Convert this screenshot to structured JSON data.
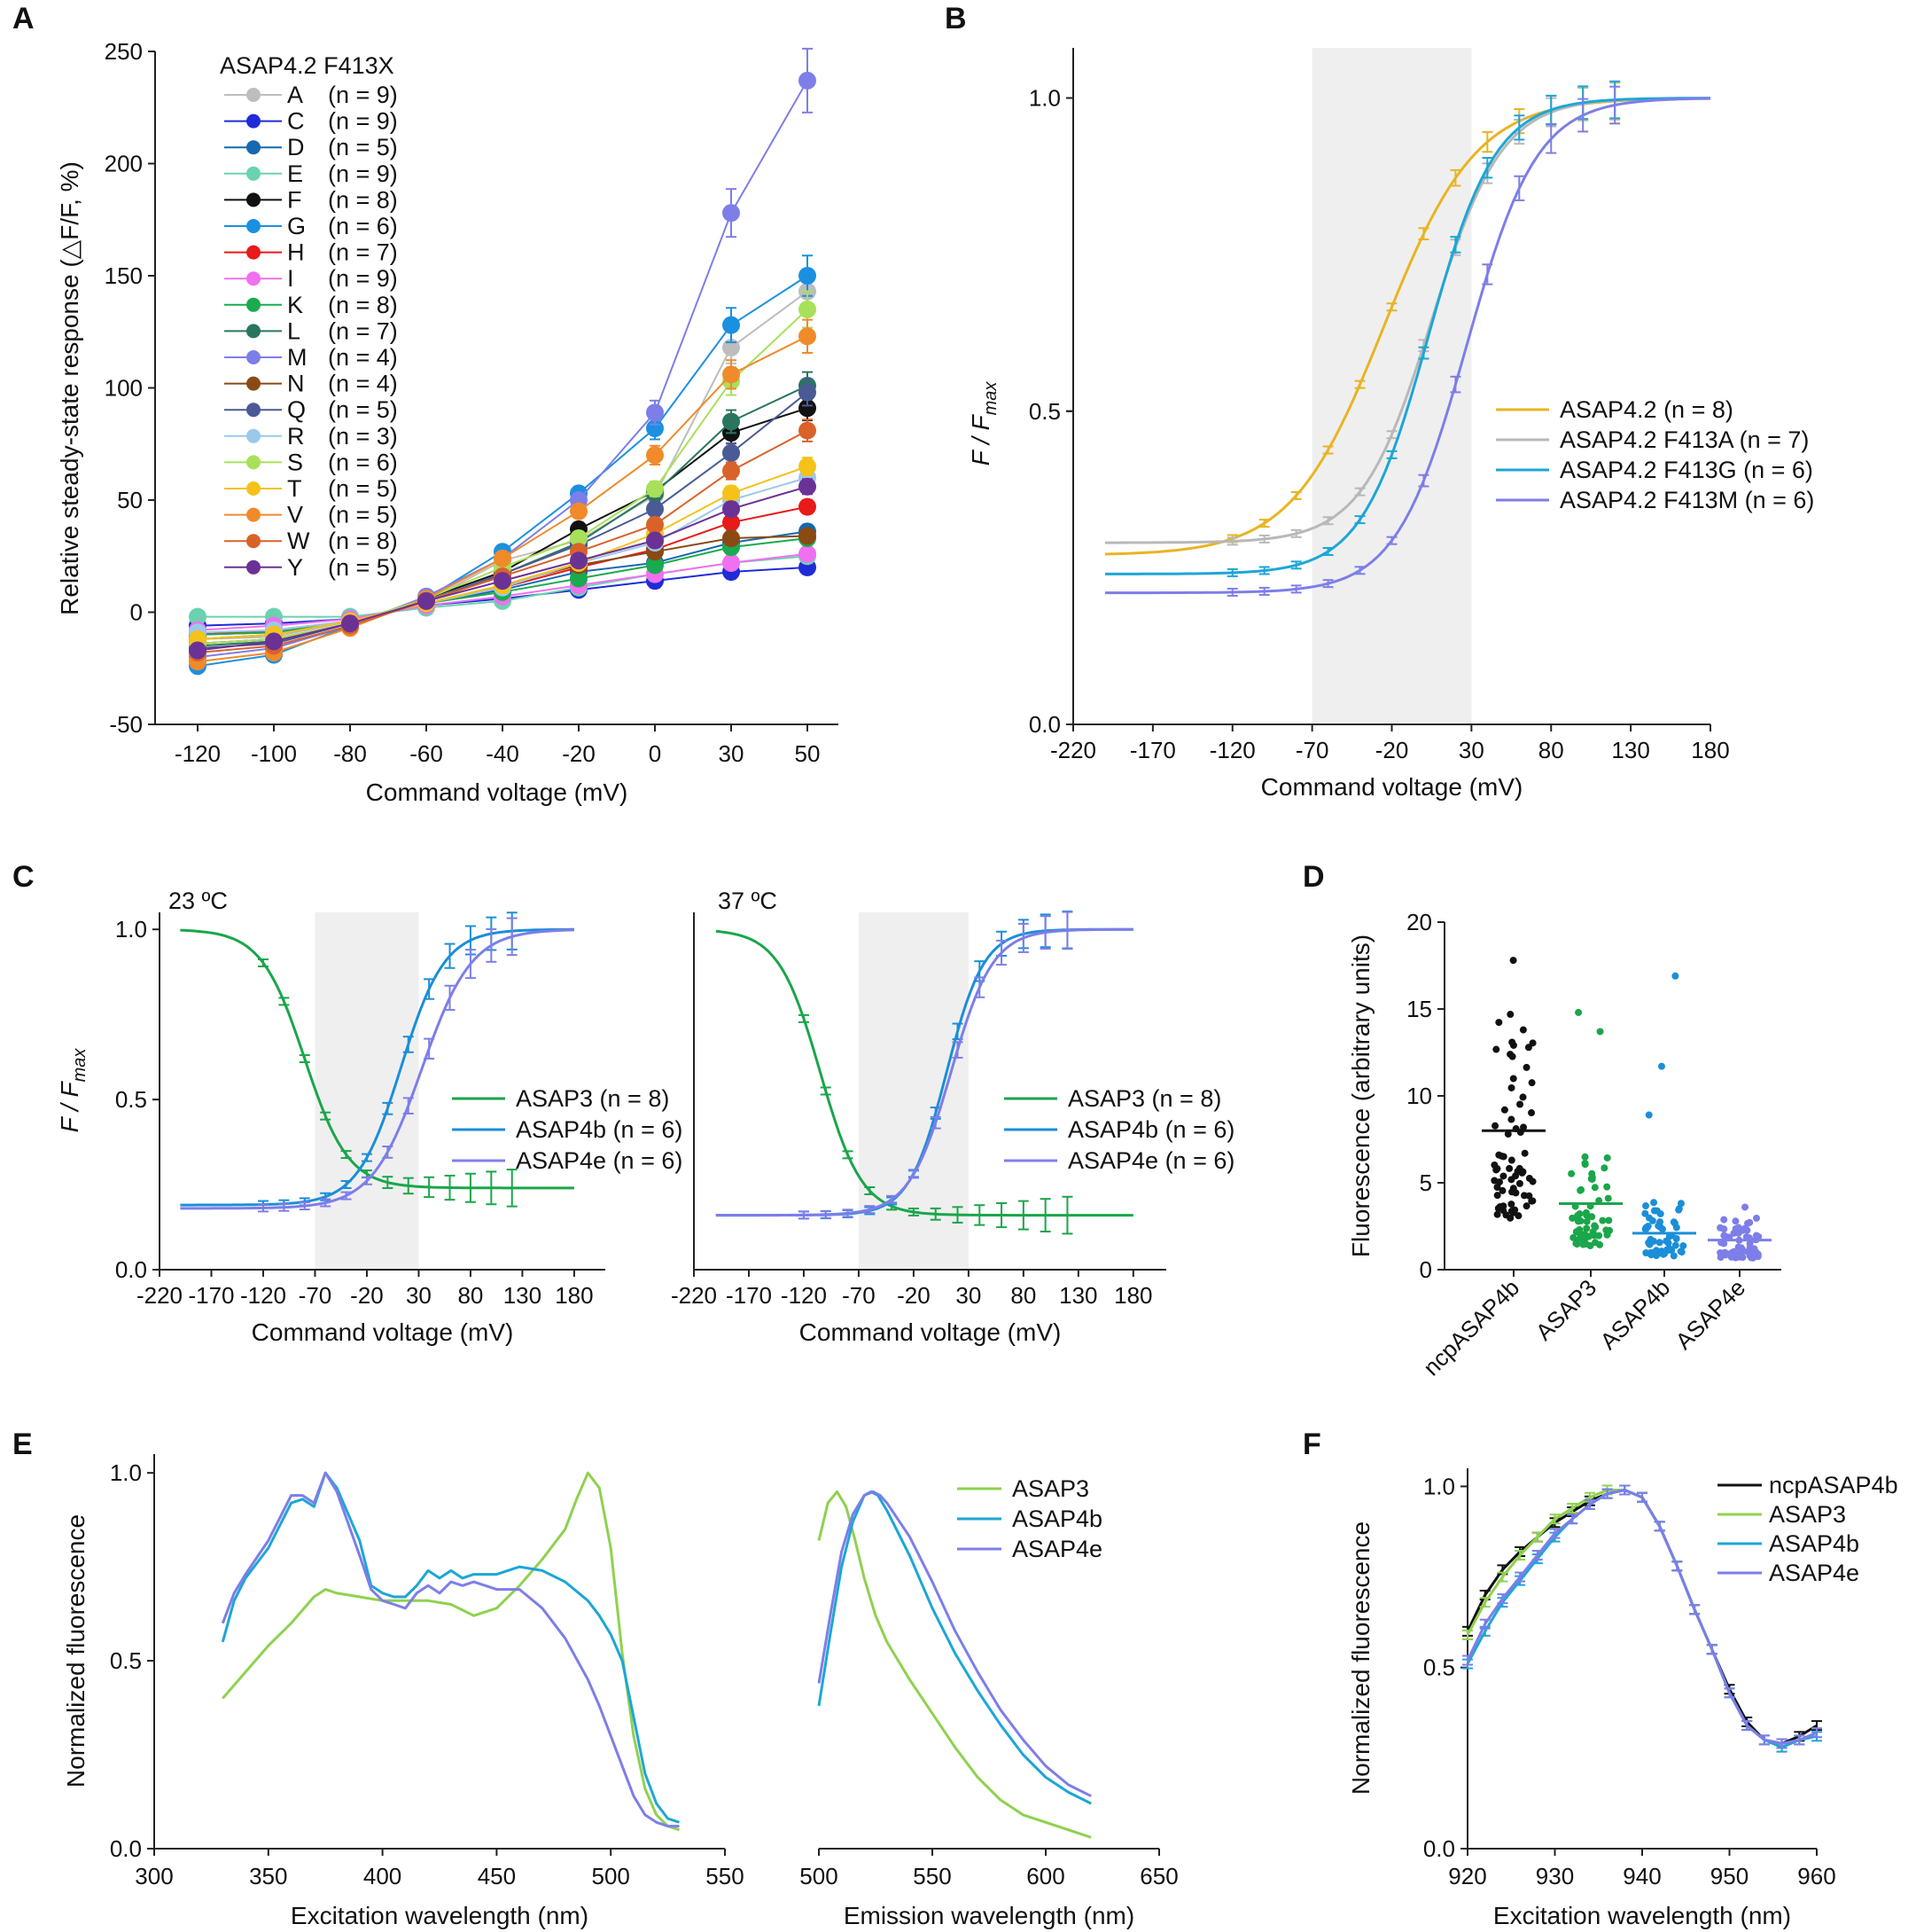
{
  "chart_data": [
    {
      "id": "A",
      "type": "line",
      "panel_label": "A",
      "legend_title": "ASAP4.2 F413X",
      "xlabel": "Command voltage (mV)",
      "ylabel": "Relative steady-state response (△F/F, %)",
      "categories": [
        "-120",
        "-100",
        "-80",
        "-60",
        "-40",
        "-20",
        "0",
        "30",
        "50"
      ],
      "yticks": [
        "250",
        "200",
        "150",
        "100",
        "50",
        "0",
        "-50"
      ],
      "ylim": [
        -50,
        250
      ],
      "series": [
        {
          "name": "A",
          "n": "(n = 9)",
          "color": "#bdbdbd",
          "values": [
            -12,
            -11,
            -4,
            5,
            23,
            32,
            52,
            118,
            143
          ]
        },
        {
          "name": "C",
          "n": "(n = 9)",
          "color": "#1f2bd6",
          "values": [
            -6,
            -5,
            -3,
            3,
            6,
            10,
            14,
            18,
            20
          ]
        },
        {
          "name": "D",
          "n": "(n = 5)",
          "color": "#1668b0",
          "values": [
            -10,
            -9,
            -4,
            4,
            10,
            18,
            22,
            31,
            36
          ]
        },
        {
          "name": "E",
          "n": "(n = 9)",
          "color": "#6ad2b0",
          "values": [
            -2,
            -2,
            -2,
            2,
            5,
            11,
            17,
            22,
            25
          ]
        },
        {
          "name": "F",
          "n": "(n = 8)",
          "color": "#111111",
          "values": [
            -14,
            -12,
            -5,
            6,
            18,
            37,
            54,
            80,
            91
          ]
        },
        {
          "name": "G",
          "n": "(n = 6)",
          "color": "#1b90e0",
          "values": [
            -24,
            -19,
            -6,
            6,
            27,
            53,
            82,
            128,
            150
          ]
        },
        {
          "name": "H",
          "n": "(n = 7)",
          "color": "#e81a1a",
          "values": [
            -10,
            -8,
            -4,
            4,
            11,
            20,
            28,
            40,
            47
          ]
        },
        {
          "name": "I",
          "n": "(n = 9)",
          "color": "#f070f0",
          "values": [
            -8,
            -6,
            -3,
            3,
            7,
            12,
            17,
            22,
            26
          ]
        },
        {
          "name": "K",
          "n": "(n = 8)",
          "color": "#1aaa50",
          "values": [
            -10,
            -9,
            -4,
            4,
            9,
            15,
            21,
            29,
            33
          ]
        },
        {
          "name": "L",
          "n": "(n = 7)",
          "color": "#2a7560",
          "values": [
            -15,
            -13,
            -5,
            5,
            17,
            31,
            53,
            85,
            101
          ]
        },
        {
          "name": "M",
          "n": "(n = 4)",
          "color": "#7d7ee8",
          "values": [
            -20,
            -16,
            -6,
            7,
            24,
            50,
            89,
            178,
            237
          ]
        },
        {
          "name": "N",
          "n": "(n = 4)",
          "color": "#8b4a14",
          "values": [
            -12,
            -10,
            -4,
            4,
            12,
            21,
            27,
            33,
            34
          ]
        },
        {
          "name": "Q",
          "n": "(n = 5)",
          "color": "#4a5a94",
          "values": [
            -16,
            -14,
            -5,
            5,
            17,
            30,
            46,
            71,
            98
          ]
        },
        {
          "name": "R",
          "n": "(n = 3)",
          "color": "#9cc8ea",
          "values": [
            -9,
            -8,
            -4,
            4,
            11,
            22,
            31,
            50,
            60
          ]
        },
        {
          "name": "S",
          "n": "(n = 6)",
          "color": "#a8e05a",
          "values": [
            -14,
            -12,
            -5,
            6,
            20,
            33,
            55,
            103,
            135
          ]
        },
        {
          "name": "T",
          "n": "(n = 5)",
          "color": "#f5c21a",
          "values": [
            -12,
            -10,
            -4,
            4,
            12,
            22,
            35,
            53,
            65
          ]
        },
        {
          "name": "V",
          "n": "(n = 5)",
          "color": "#f08a2a",
          "values": [
            -22,
            -18,
            -7,
            6,
            24,
            45,
            70,
            106,
            123
          ]
        },
        {
          "name": "W",
          "n": "(n = 8)",
          "color": "#d9622a",
          "values": [
            -18,
            -15,
            -6,
            5,
            16,
            27,
            39,
            63,
            81
          ]
        },
        {
          "name": "Y",
          "n": "(n = 5)",
          "color": "#6b3296",
          "values": [
            -17,
            -13,
            -5,
            5,
            14,
            23,
            32,
            46,
            56
          ]
        }
      ]
    },
    {
      "id": "B",
      "type": "line",
      "panel_label": "B",
      "xlabel": "Command voltage (mV)",
      "ylabel": "F / Fmax",
      "ylabel_main": "F / F",
      "ylabel_sub": "max",
      "xticks": [
        "-220",
        "-170",
        "-120",
        "-70",
        "-20",
        "30",
        "80",
        "130",
        "180"
      ],
      "yticks": [
        "1.0",
        "0.5",
        "0.0"
      ],
      "xlim": [
        -220,
        180
      ],
      "ylim": [
        0,
        1.08
      ],
      "shade": [
        -70,
        30
      ],
      "series": [
        {
          "name": "ASAP4.2 (n = 8)",
          "color": "#e8b422",
          "min": 0.27,
          "v0": -25,
          "k": 29
        },
        {
          "name": "ASAP4.2 F413A (n = 7)",
          "color": "#b8b8b8",
          "min": 0.29,
          "v0": 5,
          "k": 22
        },
        {
          "name": "ASAP4.2 F413G (n = 6)",
          "color": "#1da6d6",
          "min": 0.24,
          "v0": 3,
          "k": 21
        },
        {
          "name": "ASAP4.2 F413M (n = 6)",
          "color": "#7d7ee8",
          "min": 0.21,
          "v0": 27,
          "k": 22
        }
      ]
    },
    {
      "id": "C1",
      "type": "line",
      "panel_label": "C",
      "title": "23 ºC",
      "xlabel": "Command voltage (mV)",
      "ylabel": "F / Fmax",
      "ylabel_main": "F / F",
      "ylabel_sub": "max",
      "xticks": [
        "-220",
        "-170",
        "-120",
        "-70",
        "-20",
        "30",
        "80",
        "130",
        "180"
      ],
      "yticks": [
        "1.0",
        "0.5",
        "0.0"
      ],
      "xlim": [
        -220,
        210
      ],
      "ylim": [
        0,
        1.05
      ],
      "shade": [
        -70,
        30
      ],
      "series": [
        {
          "name": "ASAP3 (n = 8)",
          "color": "#1aa64a",
          "decreasing": true,
          "min": 0.24,
          "v0": -80,
          "k": 21
        },
        {
          "name": "ASAP4b (n = 6)",
          "color": "#1b8ed8",
          "min": 0.19,
          "v0": 13,
          "k": 21
        },
        {
          "name": "ASAP4e (n = 6)",
          "color": "#7d7ee8",
          "min": 0.18,
          "v0": 33,
          "k": 24
        }
      ]
    },
    {
      "id": "C2",
      "type": "line",
      "title": "37 ºC",
      "xticks": [
        "-220",
        "-170",
        "-120",
        "-70",
        "-20",
        "30",
        "80",
        "130",
        "180"
      ],
      "xlabel": "Command voltage (mV)",
      "xlim": [
        -220,
        210
      ],
      "ylim": [
        0,
        1.05
      ],
      "shade": [
        -70,
        30
      ],
      "series": [
        {
          "name": "ASAP3 (n = 8)",
          "color": "#1aa64a",
          "decreasing": true,
          "min": 0.16,
          "v0": -105,
          "k": 19
        },
        {
          "name": "ASAP4b (n = 6)",
          "color": "#1b8ed8",
          "min": 0.16,
          "v0": 10,
          "k": 17
        },
        {
          "name": "ASAP4e (n = 6)",
          "color": "#7d7ee8",
          "min": 0.16,
          "v0": 14,
          "k": 19
        }
      ]
    },
    {
      "id": "D",
      "type": "scatter",
      "panel_label": "D",
      "ylabel": "Fluorescence (arbitrary units)",
      "categories": [
        "ncpASAP4b",
        "ASAP3",
        "ASAP4b",
        "ASAP4e"
      ],
      "colors": [
        "#111111",
        "#1aa64a",
        "#1b8ed8",
        "#7d7ee8"
      ],
      "means": [
        8.0,
        3.8,
        2.1,
        1.7
      ],
      "maxes": [
        17.8,
        14.8,
        16.9,
        3.6
      ],
      "yticks": [
        "20",
        "15",
        "10",
        "5",
        "0"
      ],
      "ylim": [
        0,
        20
      ]
    },
    {
      "id": "E1",
      "type": "line",
      "panel_label": "E",
      "xlabel": "Excitation wavelength (nm)",
      "ylabel": "Normalized fluorescence",
      "xticks": [
        "300",
        "350",
        "400",
        "450",
        "500",
        "550"
      ],
      "yticks": [
        "1.0",
        "0.5",
        "0.0"
      ],
      "xlim": [
        300,
        550
      ],
      "ylim": [
        0,
        1.05
      ],
      "series": [
        {
          "name": "ASAP3",
          "color": "#8fd14f",
          "x": [
            330,
            340,
            350,
            360,
            370,
            375,
            380,
            390,
            400,
            410,
            420,
            430,
            440,
            450,
            460,
            470,
            480,
            485,
            490,
            495,
            500,
            505,
            510,
            515,
            520,
            525,
            530
          ],
          "values": [
            0.4,
            0.47,
            0.54,
            0.6,
            0.67,
            0.69,
            0.68,
            0.67,
            0.66,
            0.66,
            0.66,
            0.65,
            0.62,
            0.64,
            0.7,
            0.77,
            0.85,
            0.93,
            1.0,
            0.96,
            0.8,
            0.52,
            0.3,
            0.16,
            0.09,
            0.06,
            0.05
          ]
        },
        {
          "name": "ASAP4b",
          "color": "#1da6d6",
          "x": [
            330,
            335,
            340,
            350,
            360,
            365,
            370,
            375,
            380,
            390,
            395,
            400,
            405,
            410,
            415,
            420,
            425,
            430,
            435,
            440,
            450,
            460,
            470,
            480,
            490,
            495,
            500,
            505,
            510,
            515,
            520,
            525,
            530
          ],
          "values": [
            0.55,
            0.66,
            0.72,
            0.8,
            0.92,
            0.93,
            0.91,
            1.0,
            0.96,
            0.82,
            0.7,
            0.68,
            0.67,
            0.67,
            0.7,
            0.74,
            0.72,
            0.74,
            0.72,
            0.73,
            0.73,
            0.75,
            0.74,
            0.71,
            0.66,
            0.62,
            0.57,
            0.5,
            0.35,
            0.2,
            0.12,
            0.08,
            0.07
          ]
        },
        {
          "name": "ASAP4e",
          "color": "#7d7ee8",
          "x": [
            330,
            335,
            340,
            350,
            360,
            365,
            370,
            375,
            380,
            390,
            395,
            400,
            405,
            410,
            415,
            420,
            425,
            430,
            435,
            440,
            450,
            460,
            470,
            480,
            490,
            495,
            500,
            505,
            510,
            515,
            520,
            525,
            530
          ],
          "values": [
            0.6,
            0.68,
            0.73,
            0.82,
            0.94,
            0.94,
            0.92,
            1.0,
            0.95,
            0.78,
            0.69,
            0.66,
            0.65,
            0.64,
            0.68,
            0.7,
            0.68,
            0.71,
            0.7,
            0.71,
            0.69,
            0.69,
            0.64,
            0.56,
            0.45,
            0.38,
            0.3,
            0.22,
            0.14,
            0.09,
            0.07,
            0.06,
            0.06
          ]
        }
      ]
    },
    {
      "id": "E2",
      "type": "line",
      "xlabel": "Emission wavelength (nm)",
      "xticks": [
        "500",
        "550",
        "600",
        "650"
      ],
      "xlim": [
        500,
        650
      ],
      "ylim": [
        0,
        1.05
      ],
      "series": [
        {
          "name": "ASAP3",
          "color": "#8fd14f",
          "x": [
            500,
            504,
            508,
            512,
            516,
            520,
            525,
            530,
            540,
            550,
            560,
            570,
            580,
            590,
            600,
            610,
            620
          ],
          "values": [
            0.82,
            0.92,
            0.95,
            0.91,
            0.82,
            0.72,
            0.62,
            0.55,
            0.45,
            0.36,
            0.27,
            0.19,
            0.13,
            0.09,
            0.07,
            0.05,
            0.03
          ]
        },
        {
          "name": "ASAP4b",
          "color": "#1da6d6",
          "x": [
            500,
            505,
            510,
            515,
            520,
            523,
            526,
            530,
            540,
            550,
            560,
            570,
            580,
            590,
            600,
            610,
            620
          ],
          "values": [
            0.38,
            0.57,
            0.75,
            0.87,
            0.94,
            0.95,
            0.94,
            0.9,
            0.78,
            0.64,
            0.52,
            0.42,
            0.33,
            0.25,
            0.19,
            0.15,
            0.12
          ]
        },
        {
          "name": "ASAP4e",
          "color": "#7d7ee8",
          "x": [
            500,
            505,
            510,
            515,
            520,
            524,
            527,
            530,
            540,
            550,
            560,
            570,
            580,
            590,
            600,
            610,
            620
          ],
          "values": [
            0.44,
            0.62,
            0.79,
            0.89,
            0.94,
            0.95,
            0.94,
            0.92,
            0.83,
            0.71,
            0.58,
            0.47,
            0.37,
            0.29,
            0.22,
            0.17,
            0.14
          ]
        }
      ]
    },
    {
      "id": "F",
      "type": "line",
      "panel_label": "F",
      "xlabel": "Excitation wavelength (nm)",
      "ylabel": "Normalized fluorescence",
      "xticks": [
        "920",
        "930",
        "940",
        "950",
        "960"
      ],
      "yticks": [
        "1.0",
        "0.5",
        "0.0"
      ],
      "xlim": [
        920,
        960
      ],
      "ylim": [
        0,
        1.05
      ],
      "x": [
        920,
        922,
        924,
        926,
        928,
        930,
        932,
        934,
        936,
        938,
        940,
        942,
        944,
        946,
        948,
        950,
        952,
        954,
        956,
        958,
        960
      ],
      "series": [
        {
          "name": "ncpASAP4b",
          "color": "#111111",
          "values": [
            0.6,
            0.7,
            0.77,
            0.82,
            0.86,
            0.9,
            0.93,
            0.96,
            0.98,
            0.99,
            0.97,
            0.89,
            0.78,
            0.66,
            0.55,
            0.44,
            0.35,
            0.3,
            0.29,
            0.31,
            0.34
          ]
        },
        {
          "name": "ASAP3",
          "color": "#8fd14f",
          "values": [
            0.59,
            0.68,
            0.75,
            0.81,
            0.86,
            0.91,
            0.94,
            0.97,
            0.99,
            0.99,
            0.97,
            0.89,
            0.78,
            0.66,
            0.55,
            0.43,
            0.34,
            0.3,
            0.28,
            0.3,
            0.32
          ]
        },
        {
          "name": "ASAP4b",
          "color": "#1da6d6",
          "values": [
            0.51,
            0.6,
            0.68,
            0.74,
            0.8,
            0.86,
            0.91,
            0.95,
            0.98,
            0.99,
            0.97,
            0.89,
            0.78,
            0.66,
            0.55,
            0.43,
            0.34,
            0.3,
            0.28,
            0.3,
            0.31
          ]
        },
        {
          "name": "ASAP4e",
          "color": "#7d7ee8",
          "values": [
            0.52,
            0.62,
            0.69,
            0.75,
            0.81,
            0.87,
            0.91,
            0.95,
            0.98,
            0.99,
            0.97,
            0.89,
            0.78,
            0.66,
            0.55,
            0.43,
            0.34,
            0.3,
            0.29,
            0.3,
            0.32
          ]
        }
      ]
    }
  ]
}
